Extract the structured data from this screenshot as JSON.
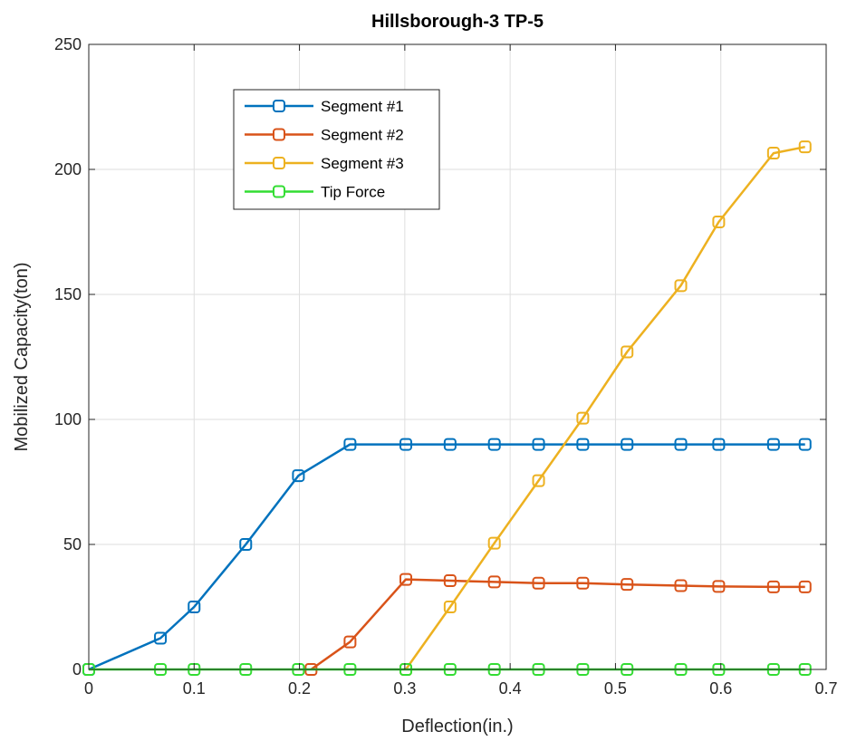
{
  "chart_data": {
    "type": "line",
    "title": "Hillsborough-3 TP-5",
    "xlabel": "Deflection(in.)",
    "ylabel": "Mobilized Capacity(ton)",
    "xlim": [
      0,
      0.7
    ],
    "ylim": [
      0,
      250
    ],
    "xticks": [
      0,
      0.1,
      0.2,
      0.3,
      0.4,
      0.5,
      0.6,
      0.7
    ],
    "xtick_labels": [
      "0",
      "0.1",
      "0.2",
      "0.3",
      "0.4",
      "0.5",
      "0.6",
      "0.7"
    ],
    "yticks": [
      0,
      50,
      100,
      150,
      200,
      250
    ],
    "ytick_labels": [
      "0",
      "50",
      "100",
      "150",
      "200",
      "250"
    ],
    "grid": true,
    "legend_position": "top-left",
    "marker": "square",
    "series": [
      {
        "name": "Segment #1",
        "color": "#0072BD",
        "x": [
          0,
          0.068,
          0.1,
          0.149,
          0.199,
          0.248,
          0.301,
          0.343,
          0.385,
          0.427,
          0.469,
          0.511,
          0.562,
          0.598,
          0.65,
          0.68
        ],
        "y": [
          0,
          12.5,
          25,
          50,
          77.5,
          90,
          90,
          90,
          90,
          90,
          90,
          90,
          90,
          90,
          90,
          90
        ]
      },
      {
        "name": "Segment #2",
        "color": "#D95319",
        "x": [
          0.211,
          0.248,
          0.301,
          0.343,
          0.385,
          0.427,
          0.469,
          0.511,
          0.562,
          0.598,
          0.65,
          0.68
        ],
        "y": [
          0,
          11,
          36,
          35.5,
          35,
          34.5,
          34.5,
          34,
          33.5,
          33.2,
          33,
          33
        ]
      },
      {
        "name": "Segment #3",
        "color": "#EDB120",
        "x": [
          0.301,
          0.343,
          0.385,
          0.427,
          0.469,
          0.511,
          0.562,
          0.598,
          0.65,
          0.68
        ],
        "y": [
          0,
          25,
          50.5,
          75.5,
          100.5,
          127,
          153.5,
          179,
          206.5,
          209
        ]
      },
      {
        "name": "Tip Force",
        "color": "#33DD33",
        "x": [
          0,
          0.068,
          0.1,
          0.149,
          0.199,
          0.248,
          0.301,
          0.343,
          0.385,
          0.427,
          0.469,
          0.511,
          0.562,
          0.598,
          0.65,
          0.68
        ],
        "y": [
          0,
          0,
          0,
          0,
          0,
          0,
          0,
          0,
          0,
          0,
          0,
          0,
          0,
          0,
          0,
          0
        ]
      }
    ]
  }
}
